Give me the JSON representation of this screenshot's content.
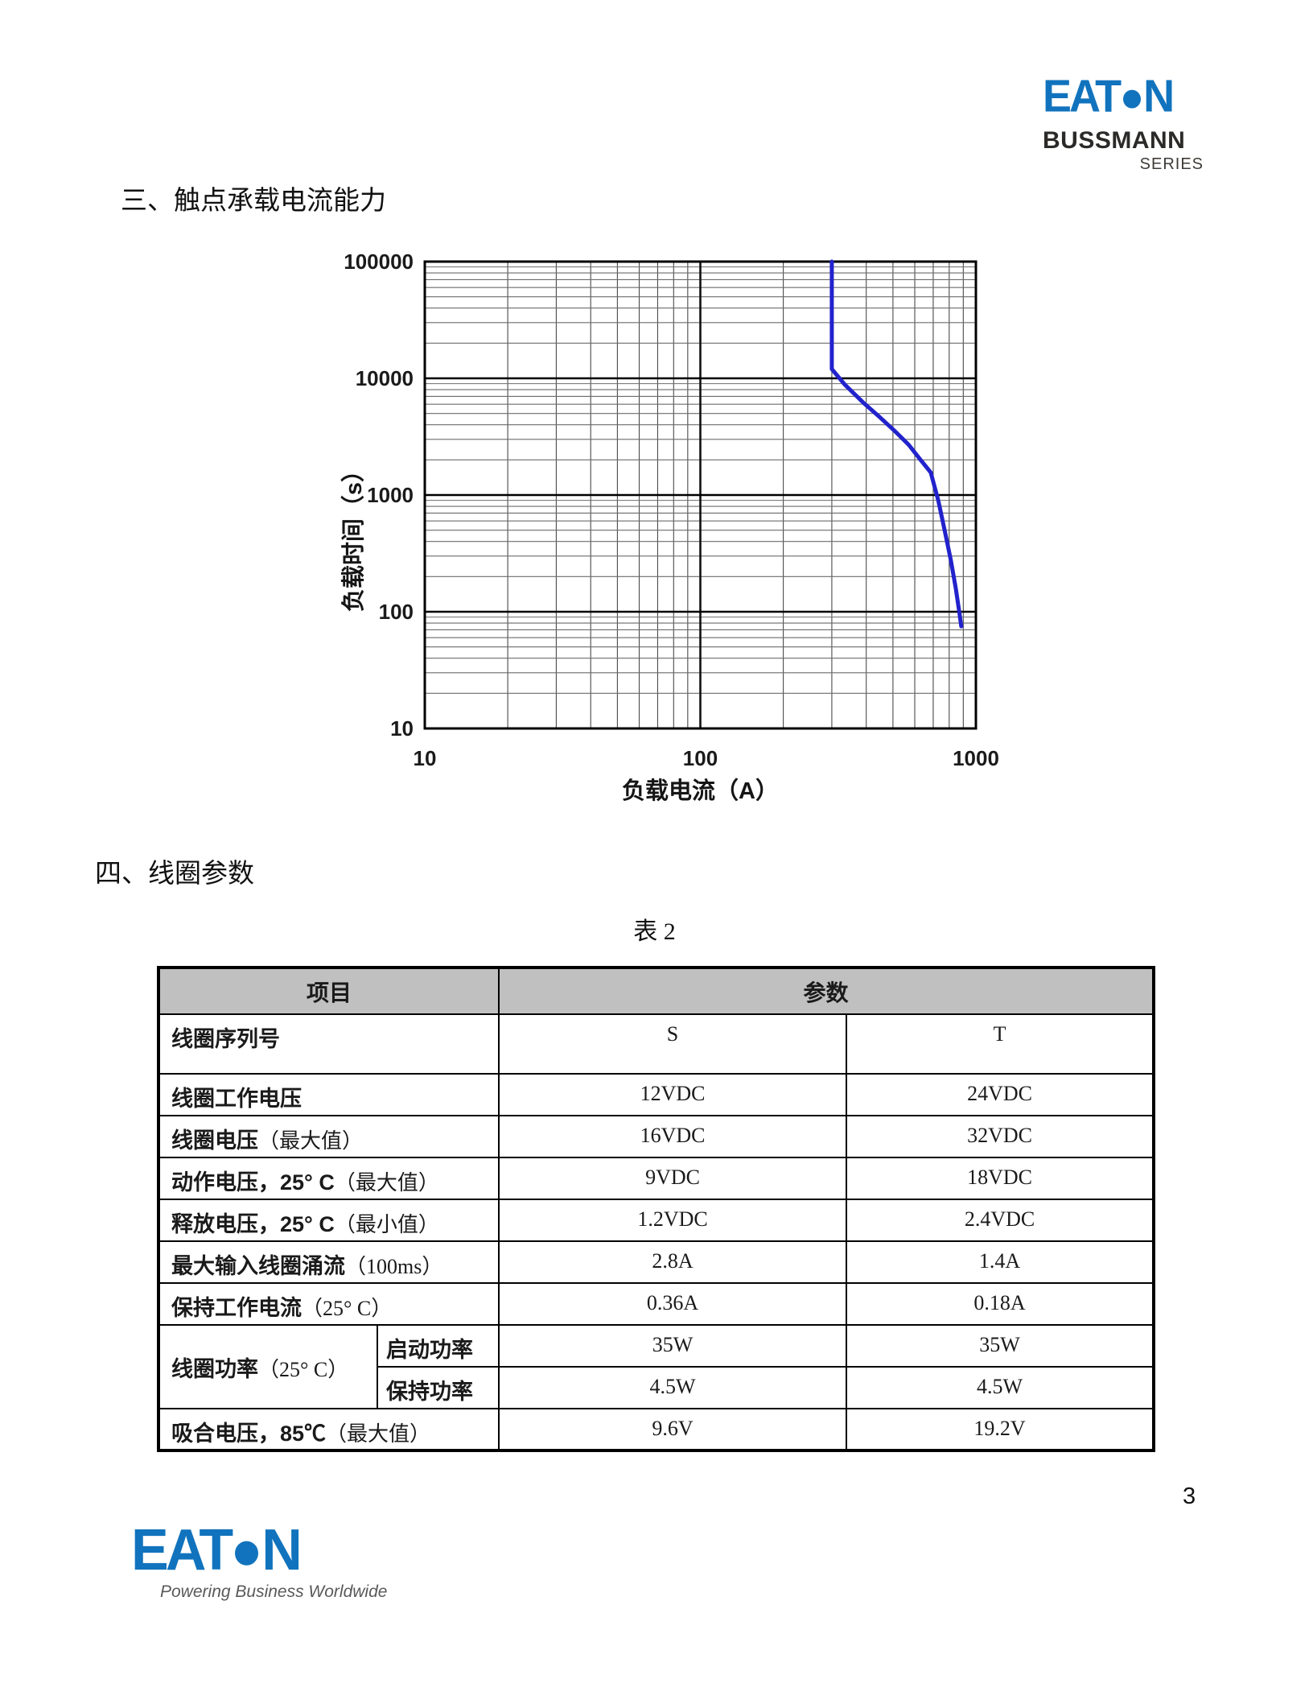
{
  "page": {
    "number": "3"
  },
  "header_logo": {
    "eaton_left": "EAT",
    "eaton_right": "N",
    "line1": "BUSSMANN",
    "line2": "SERIES",
    "brand_blue": "#1173BD",
    "brand_dark": "#2B2A28"
  },
  "footer_logo": {
    "eaton_left": "EAT",
    "eaton_right": "N",
    "tagline": "Powering Business Worldwide"
  },
  "sections": {
    "s3_title": "三、触点承载电流能力",
    "s4_title": "四、线圈参数"
  },
  "chart_data": {
    "type": "line",
    "title": "",
    "xlabel": "负载电流（A）",
    "ylabel": "负载时间（s）",
    "xscale": "log",
    "yscale": "log",
    "xlim": [
      10,
      1000
    ],
    "ylim": [
      10,
      100000
    ],
    "x_ticks": [
      10,
      100,
      1000
    ],
    "y_ticks": [
      10,
      100,
      1000,
      10000,
      100000
    ],
    "grid": "log minor + major, full frame",
    "legend_position": "none",
    "series": [
      {
        "name": "contact-current-carrying-capacity",
        "color": "#2222CC",
        "points": [
          [
            300,
            100000
          ],
          [
            300,
            12000
          ],
          [
            335,
            8800
          ],
          [
            390,
            6200
          ],
          [
            450,
            4600
          ],
          [
            510,
            3500
          ],
          [
            570,
            2700
          ],
          [
            630,
            2000
          ],
          [
            686,
            1560
          ],
          [
            730,
            900
          ],
          [
            770,
            500
          ],
          [
            810,
            280
          ],
          [
            845,
            160
          ],
          [
            870,
            100
          ],
          [
            885,
            75
          ]
        ]
      }
    ]
  },
  "table": {
    "caption": "表 2",
    "col_item": "项目",
    "col_param": "参数",
    "rows": [
      {
        "label": "线圈序列号",
        "suffix": "",
        "s": "S",
        "t": "T"
      },
      {
        "label": "线圈工作电压",
        "suffix": "",
        "s": "12VDC",
        "t": "24VDC"
      },
      {
        "label": "线圈电压",
        "suffix": "（最大值）",
        "s": "16VDC",
        "t": "32VDC"
      },
      {
        "label": "动作电压，25° C",
        "suffix": "（最大值）",
        "s": "9VDC",
        "t": "18VDC"
      },
      {
        "label": "释放电压，25° C",
        "suffix": "（最小值）",
        "s": "1.2VDC",
        "t": "2.4VDC"
      },
      {
        "label": "最大输入线圈涌流",
        "suffix": "（100ms）",
        "s": "2.8A",
        "t": "1.4A"
      },
      {
        "label": "保持工作电流",
        "suffix": "（25° C）",
        "s": "0.36A",
        "t": "0.18A"
      }
    ],
    "coil_power": {
      "label": "线圈功率",
      "suffix": "（25° C）",
      "sub_rows": [
        {
          "label": "启动功率",
          "s": "35W",
          "t": "35W"
        },
        {
          "label": "保持功率",
          "s": "4.5W",
          "t": "4.5W"
        }
      ]
    },
    "pull_in": {
      "label": "吸合电压，85℃",
      "suffix": "（最大值）",
      "s": "9.6V",
      "t": "19.2V"
    }
  }
}
